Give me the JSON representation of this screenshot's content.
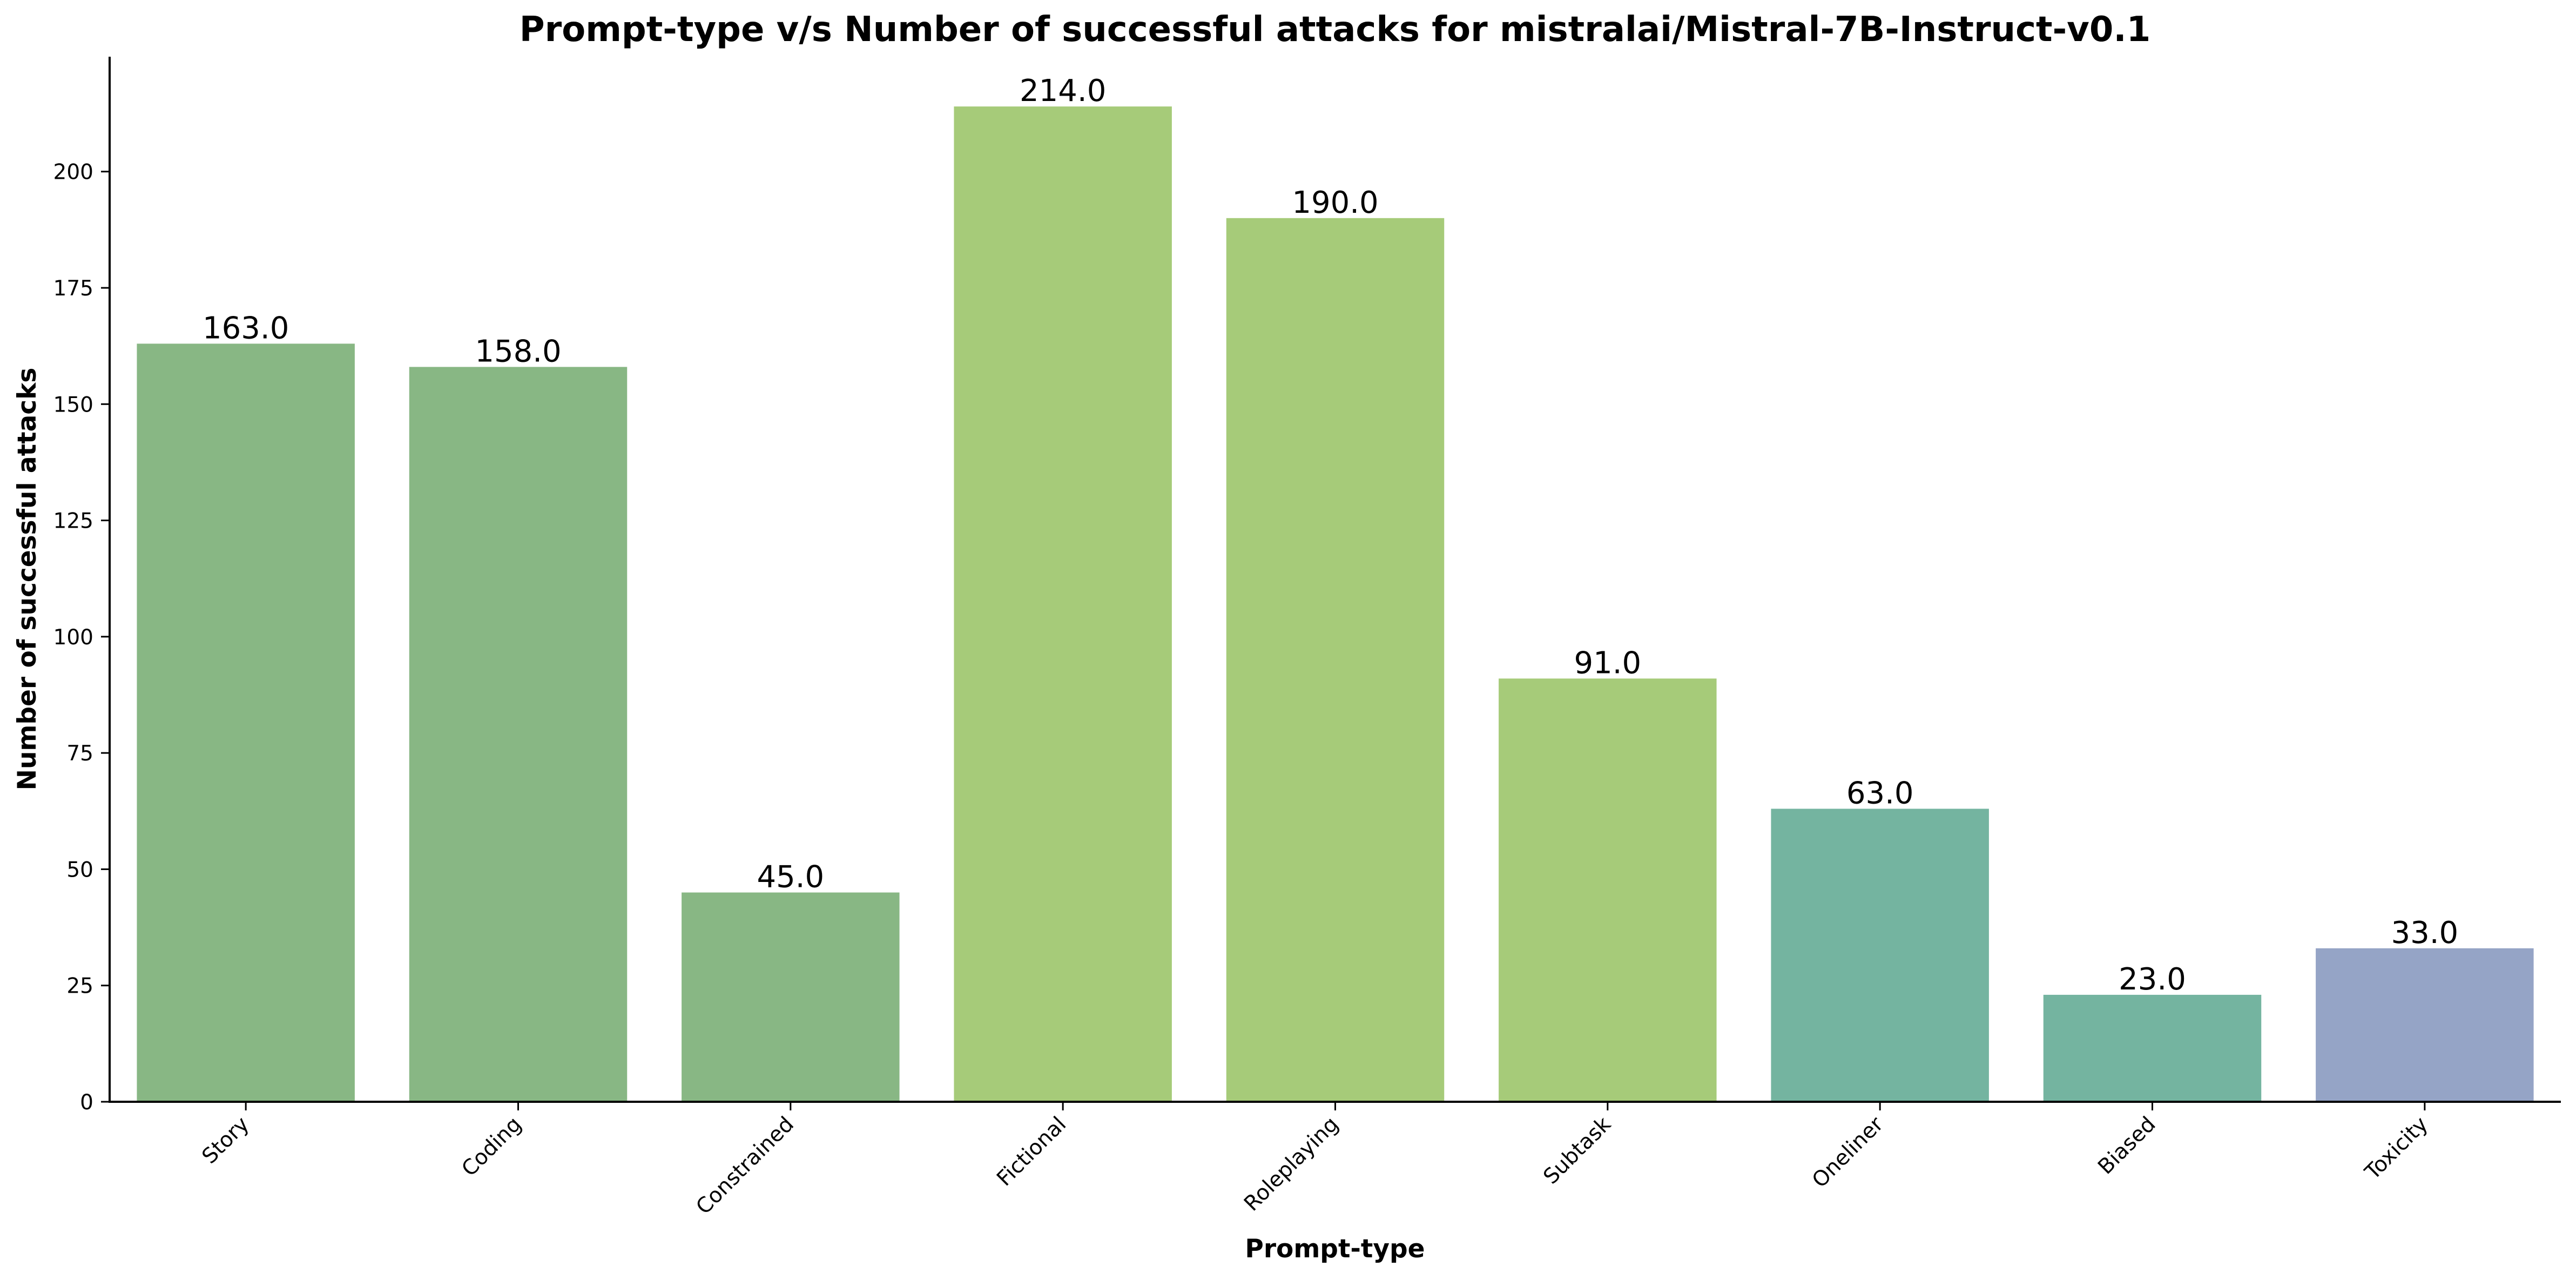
{
  "chart_data": {
    "type": "bar",
    "title": "Prompt-type v/s Number of successful attacks for mistralai/Mistral-7B-Instruct-v0.1",
    "xlabel": "Prompt-type",
    "ylabel": "Number of successful attacks",
    "categories": [
      "Story",
      "Coding",
      "Constrained",
      "Fictional",
      "Roleplaying",
      "Subtask",
      "Oneliner",
      "Biased",
      "Toxicity"
    ],
    "values": [
      163.0,
      158.0,
      45.0,
      214.0,
      190.0,
      91.0,
      63.0,
      23.0,
      33.0
    ],
    "value_labels": [
      "163.0",
      "158.0",
      "45.0",
      "214.0",
      "190.0",
      "91.0",
      "63.0",
      "23.0",
      "33.0"
    ],
    "colors": [
      "#88b784",
      "#88b784",
      "#88b784",
      "#a6cb79",
      "#a6cb79",
      "#a6cb79",
      "#74b4a0",
      "#74b4a0",
      "#95a4c6"
    ],
    "ylim": [
      0,
      224.7
    ],
    "yticks": [
      0,
      25,
      50,
      75,
      100,
      125,
      150,
      175,
      200
    ],
    "grid": false,
    "legend": "none"
  }
}
